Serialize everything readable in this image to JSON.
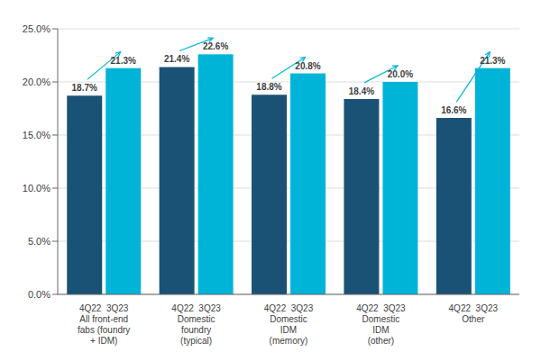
{
  "chart_data": {
    "type": "bar",
    "categories": [
      "4Q22  3Q23\nAll front-end\nfabs (foundry\n+ IDM)",
      "4Q22  3Q23\nDomestic\nfoundry\n(typical)",
      "4Q22  3Q23\nDomestic\nIDM\n(memory)",
      "4Q22  3Q23\nDomestic\nIDM\n(other)",
      "4Q22  3Q23\nOther"
    ],
    "series": [
      {
        "color": "#1a5276",
        "values": [
          18.7,
          21.4,
          18.8,
          18.4,
          16.6
        ],
        "value_labels": [
          "18.7%",
          "21.4%",
          "18.8%",
          "18.4%",
          "16.6%"
        ]
      },
      {
        "color": "#00b4d8",
        "values": [
          21.3,
          22.6,
          20.8,
          20.0,
          21.3
        ],
        "value_labels": [
          "21.3%",
          "22.6%",
          "20.8%",
          "20.0%",
          "21.3%"
        ]
      }
    ],
    "ylim": [
      0,
      25
    ],
    "yticks": [
      {
        "value": 0,
        "label": "0.0%"
      },
      {
        "value": 5,
        "label": "5.0%"
      },
      {
        "value": 10,
        "label": "10.0%"
      },
      {
        "value": 15,
        "label": "15.0%"
      },
      {
        "value": 20,
        "label": "20.0%"
      },
      {
        "value": 25,
        "label": "25.0%"
      }
    ],
    "grid": true,
    "data_labels": true
  }
}
